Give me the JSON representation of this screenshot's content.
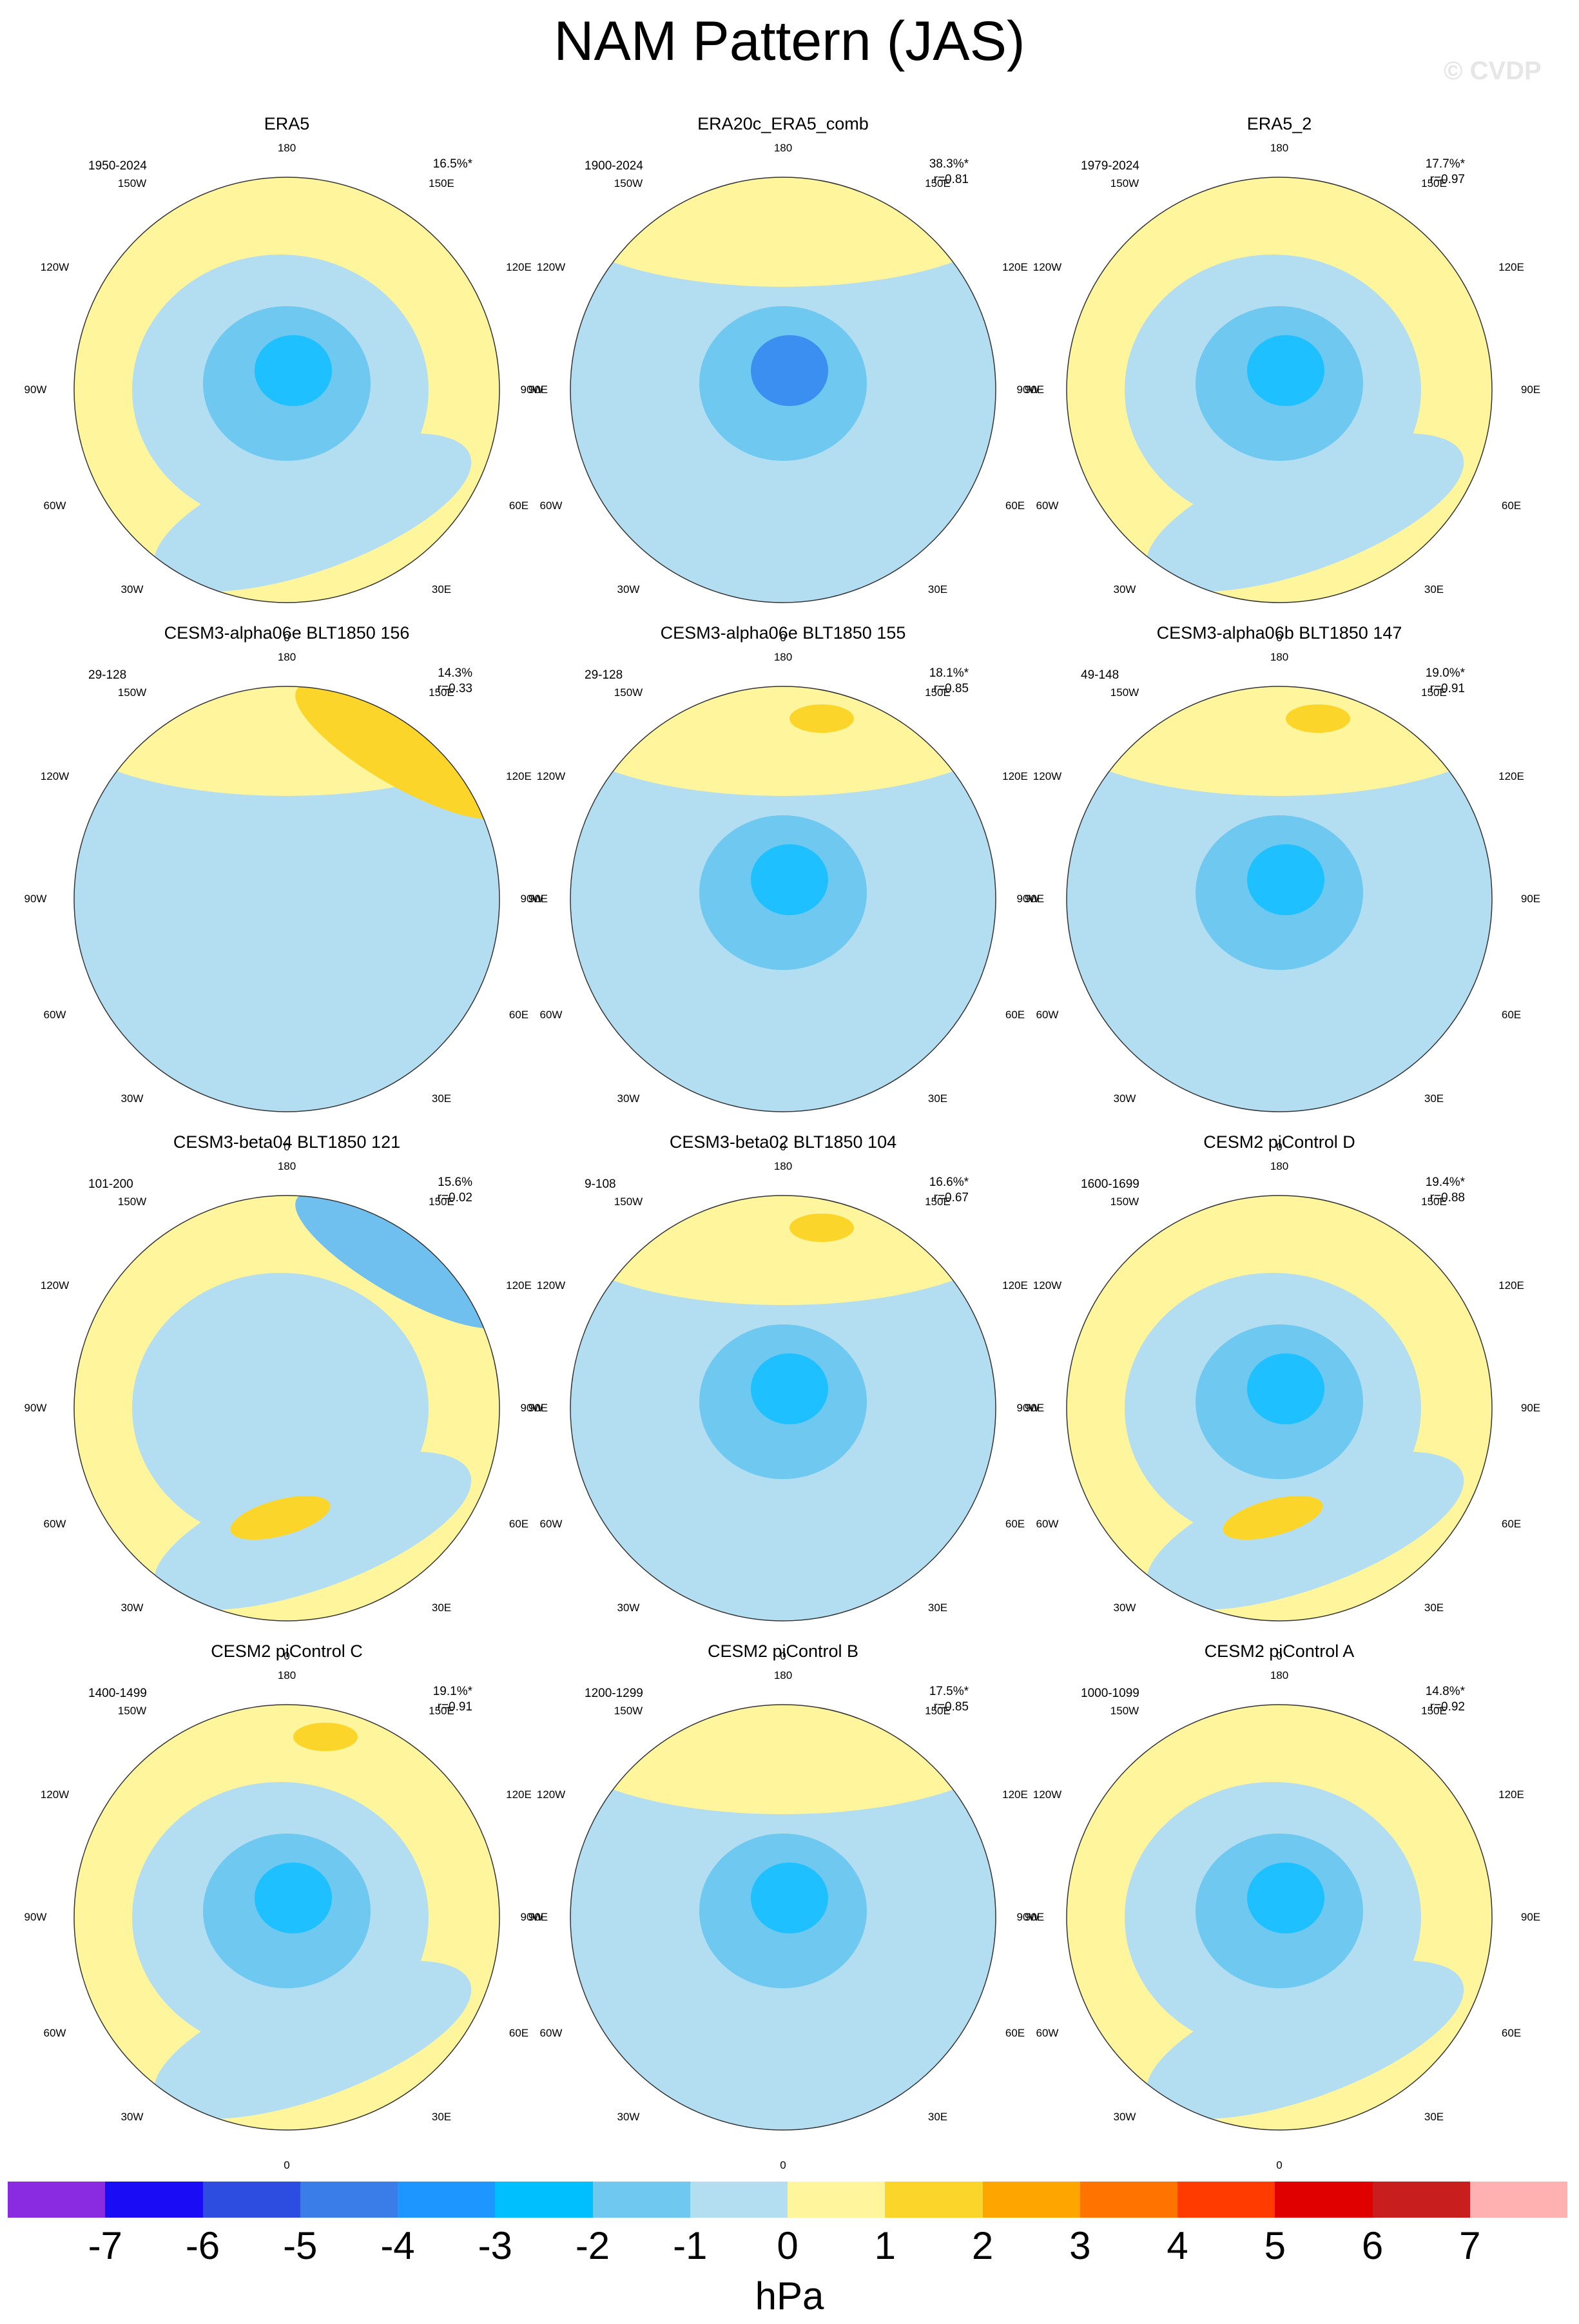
{
  "title": "NAM Pattern (JAS)",
  "watermark": "© CVDP",
  "lon_labels": {
    "top": "180",
    "bottom": "0",
    "150W": "150W",
    "150E": "150E",
    "120W": "120W",
    "120E": "120E",
    "90W": "90W",
    "90E": "90E",
    "60W": "60W",
    "60E": "60E",
    "30W": "30W",
    "30E": "30E"
  },
  "panels": [
    {
      "title": "ERA5",
      "period": "1950-2024",
      "pct": "16.5%*",
      "r": ""
    },
    {
      "title": "ERA20c_ERA5_comb",
      "period": "1900-2024",
      "pct": "38.3%*",
      "r": "r=0.81"
    },
    {
      "title": "ERA5_2",
      "period": "1979-2024",
      "pct": "17.7%*",
      "r": "r=0.97"
    },
    {
      "title": "CESM3-alpha06e BLT1850 156",
      "period": "29-128",
      "pct": "14.3%",
      "r": "r=0.33"
    },
    {
      "title": "CESM3-alpha06e BLT1850 155",
      "period": "29-128",
      "pct": "18.1%*",
      "r": "r=0.85"
    },
    {
      "title": "CESM3-alpha06b BLT1850 147",
      "period": "49-148",
      "pct": "19.0%*",
      "r": "r=0.91"
    },
    {
      "title": "CESM3-beta04 BLT1850 121",
      "period": "101-200",
      "pct": "15.6%",
      "r": "r=0.02"
    },
    {
      "title": "CESM3-beta02 BLT1850 104",
      "period": "9-108",
      "pct": "16.6%*",
      "r": "r=0.67"
    },
    {
      "title": "CESM2 piControl D",
      "period": "1600-1699",
      "pct": "19.4%*",
      "r": "r=0.88"
    },
    {
      "title": "CESM2 piControl C",
      "period": "1400-1499",
      "pct": "19.1%*",
      "r": "r=0.91"
    },
    {
      "title": "CESM2 piControl B",
      "period": "1200-1299",
      "pct": "17.5%*",
      "r": "r=0.85"
    },
    {
      "title": "CESM2 piControl A",
      "period": "1000-1099",
      "pct": "14.8%*",
      "r": "r=0.92"
    }
  ],
  "colorbar": {
    "colors": [
      "#8a2be2",
      "#1a0cf5",
      "#2d4de0",
      "#3a7de8",
      "#1e96ff",
      "#00bfff",
      "#6fc8f0",
      "#b3def2",
      "#fff59d",
      "#fcd52a",
      "#ffa500",
      "#ff7400",
      "#ff3b00",
      "#e00000",
      "#c81e1e",
      "#ffb0b0"
    ],
    "ticks": [
      "-7",
      "-6",
      "-5",
      "-4",
      "-3",
      "-2",
      "-1",
      "0",
      "1",
      "2",
      "3",
      "4",
      "5",
      "6",
      "7"
    ],
    "units": "hPa"
  }
}
